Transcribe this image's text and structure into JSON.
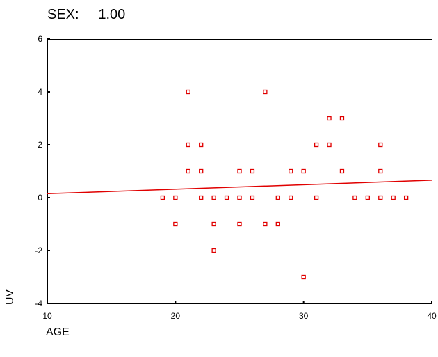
{
  "chart_data": {
    "type": "scatter",
    "title": "SEX:     1.00",
    "xlabel": "AGE",
    "ylabel": "UV",
    "xlim": [
      10,
      40
    ],
    "ylim": [
      -4,
      6
    ],
    "xticks": [
      "10",
      "20",
      "30",
      "40"
    ],
    "yticks": [
      "-4",
      "-2",
      "0",
      "2",
      "4",
      "6"
    ],
    "points": [
      {
        "x": 19,
        "y": 0
      },
      {
        "x": 20,
        "y": 0
      },
      {
        "x": 20,
        "y": -1
      },
      {
        "x": 21,
        "y": 4
      },
      {
        "x": 21,
        "y": 2
      },
      {
        "x": 21,
        "y": 1
      },
      {
        "x": 22,
        "y": 2
      },
      {
        "x": 22,
        "y": 1
      },
      {
        "x": 22,
        "y": 0
      },
      {
        "x": 23,
        "y": 0
      },
      {
        "x": 23,
        "y": -1
      },
      {
        "x": 23,
        "y": -2
      },
      {
        "x": 24,
        "y": 0
      },
      {
        "x": 25,
        "y": 1
      },
      {
        "x": 25,
        "y": 0
      },
      {
        "x": 25,
        "y": -1
      },
      {
        "x": 26,
        "y": 1
      },
      {
        "x": 26,
        "y": 0
      },
      {
        "x": 27,
        "y": 4
      },
      {
        "x": 27,
        "y": -1
      },
      {
        "x": 28,
        "y": 0
      },
      {
        "x": 28,
        "y": -1
      },
      {
        "x": 29,
        "y": 1
      },
      {
        "x": 29,
        "y": 0
      },
      {
        "x": 30,
        "y": 1
      },
      {
        "x": 30,
        "y": -3
      },
      {
        "x": 31,
        "y": 2
      },
      {
        "x": 31,
        "y": 0
      },
      {
        "x": 32,
        "y": 3
      },
      {
        "x": 32,
        "y": 2
      },
      {
        "x": 33,
        "y": 3
      },
      {
        "x": 33,
        "y": 1
      },
      {
        "x": 34,
        "y": 0
      },
      {
        "x": 35,
        "y": 0
      },
      {
        "x": 36,
        "y": 2
      },
      {
        "x": 36,
        "y": 1
      },
      {
        "x": 36,
        "y": 0
      },
      {
        "x": 37,
        "y": 0
      },
      {
        "x": 38,
        "y": 0
      }
    ],
    "fit_line": {
      "x": [
        10,
        40
      ],
      "y": [
        0.15,
        0.66
      ]
    },
    "marker_color": "#e00000",
    "line_color": "#e00000",
    "grid": false,
    "legend": "none"
  }
}
